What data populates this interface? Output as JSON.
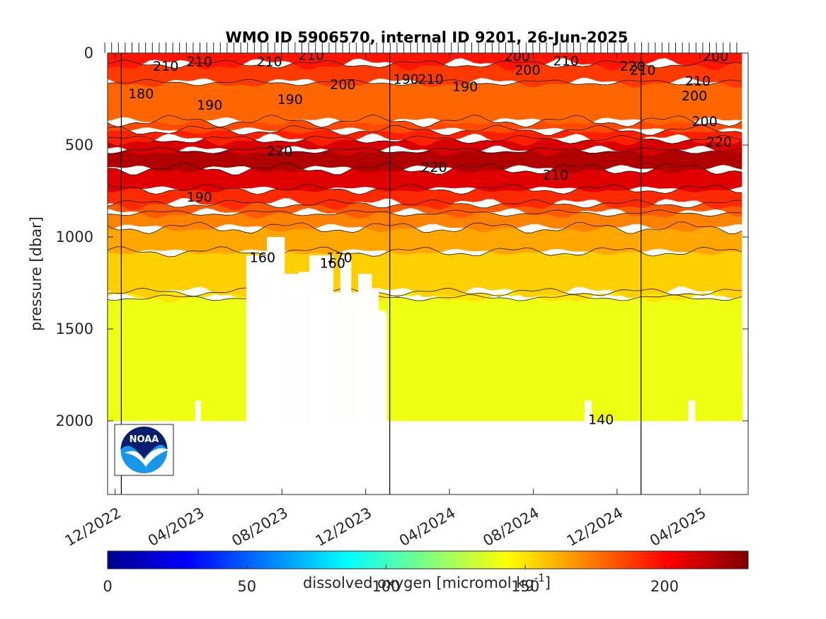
{
  "chart_data": {
    "type": "heatmap",
    "title": "WMO ID 5906570, internal ID 9201, 26-Jun-2025",
    "xlabel": "",
    "ylabel": "pressure [dbar]",
    "xlim": [
      "2022-11-20",
      "2025-06-10"
    ],
    "ylim": [
      0,
      2400
    ],
    "y_reversed": true,
    "x_ticks": [
      "12/2022",
      "04/2023",
      "08/2023",
      "12/2023",
      "04/2024",
      "08/2024",
      "12/2024",
      "04/2025"
    ],
    "x_tick_dates": [
      "2022-12-01",
      "2023-04-01",
      "2023-08-01",
      "2023-12-01",
      "2024-04-01",
      "2024-08-01",
      "2024-12-01",
      "2025-04-01"
    ],
    "y_ticks": [
      0,
      500,
      1000,
      1500,
      2000
    ],
    "profile_start": "2022-11-16",
    "profile_end": "2025-06-02",
    "vertical_markers": [
      "2022-12-10",
      "2024-01-05",
      "2025-01-05"
    ],
    "colorbar": {
      "label": "dissolved oxygen [micromol kg",
      "label_exponent": "-1",
      "label_close": "]",
      "colormap": "jet",
      "range": [
        0,
        230
      ],
      "ticks": [
        0,
        50,
        100,
        150,
        200
      ]
    },
    "contour_labels": [
      {
        "text": "210",
        "date": "2023-01-25",
        "p": 70
      },
      {
        "text": "210",
        "date": "2023-03-15",
        "p": 45
      },
      {
        "text": "210",
        "date": "2023-06-25",
        "p": 45
      },
      {
        "text": "210",
        "date": "2023-08-25",
        "p": 10
      },
      {
        "text": "180",
        "date": "2022-12-20",
        "p": 220
      },
      {
        "text": "190",
        "date": "2023-03-30",
        "p": 280
      },
      {
        "text": "190",
        "date": "2023-07-25",
        "p": 250
      },
      {
        "text": "200",
        "date": "2023-10-10",
        "p": 170
      },
      {
        "text": "220",
        "date": "2023-07-10",
        "p": 530
      },
      {
        "text": "190",
        "date": "2023-03-15",
        "p": 780
      },
      {
        "text": "160",
        "date": "2023-06-15",
        "p": 1110
      },
      {
        "text": "170",
        "date": "2023-10-05",
        "p": 1110
      },
      {
        "text": "160",
        "date": "2023-09-25",
        "p": 1140
      },
      {
        "text": "190",
        "date": "2024-01-10",
        "p": 140
      },
      {
        "text": "210",
        "date": "2024-02-15",
        "p": 140
      },
      {
        "text": "190",
        "date": "2024-04-05",
        "p": 180
      },
      {
        "text": "220",
        "date": "2024-02-20",
        "p": 620
      },
      {
        "text": "200",
        "date": "2024-06-20",
        "p": 15
      },
      {
        "text": "200",
        "date": "2024-07-05",
        "p": 90
      },
      {
        "text": "210",
        "date": "2024-08-30",
        "p": 40
      },
      {
        "text": "210",
        "date": "2024-08-15",
        "p": 660
      },
      {
        "text": "220",
        "date": "2024-12-05",
        "p": 70
      },
      {
        "text": "210",
        "date": "2024-12-20",
        "p": 90
      },
      {
        "text": "210",
        "date": "2025-03-10",
        "p": 150
      },
      {
        "text": "200",
        "date": "2025-03-05",
        "p": 230
      },
      {
        "text": "200",
        "date": "2025-03-20",
        "p": 370
      },
      {
        "text": "200",
        "date": "2025-04-05",
        "p": 15
      },
      {
        "text": "220",
        "date": "2025-04-10",
        "p": 480
      },
      {
        "text": "140",
        "date": "2024-10-20",
        "p": 1990
      }
    ],
    "oxygen_layers": [
      {
        "level": 145,
        "top_dbar": 1330,
        "bottom_dbar": 2000,
        "color": "#eeff12"
      },
      {
        "level": 160,
        "top_dbar": 1300,
        "bottom_dbar": 1330,
        "color": "#ffe500"
      },
      {
        "level": 165,
        "top_dbar": 1080,
        "bottom_dbar": 1300,
        "color": "#ffcf00"
      },
      {
        "level": 175,
        "top_dbar": 950,
        "bottom_dbar": 1080,
        "color": "#ffa600"
      },
      {
        "level": 185,
        "top_dbar": 870,
        "bottom_dbar": 950,
        "color": "#ff8200"
      },
      {
        "level": 195,
        "top_dbar": 820,
        "bottom_dbar": 870,
        "color": "#ff5a00"
      },
      {
        "level": 205,
        "top_dbar": 740,
        "bottom_dbar": 820,
        "color": "#ff2a00"
      },
      {
        "level": 215,
        "top_dbar": 630,
        "bottom_dbar": 740,
        "color": "#e00000"
      },
      {
        "level": 225,
        "top_dbar": 530,
        "bottom_dbar": 630,
        "color": "#b00000"
      },
      {
        "level": 215,
        "top_dbar": 470,
        "bottom_dbar": 530,
        "color": "#d80000"
      },
      {
        "level": 205,
        "top_dbar": 420,
        "bottom_dbar": 470,
        "color": "#ff2000"
      },
      {
        "level": 195,
        "top_dbar": 370,
        "bottom_dbar": 420,
        "color": "#ff4a00"
      },
      {
        "level": 190,
        "top_dbar": 160,
        "bottom_dbar": 370,
        "color": "#ff6600"
      },
      {
        "level": 200,
        "top_dbar": 60,
        "bottom_dbar": 160,
        "color": "#ff3a00"
      },
      {
        "level": 210,
        "top_dbar": 0,
        "bottom_dbar": 60,
        "color": "#ff1500"
      }
    ],
    "missing_data_blocks": [
      {
        "start": "2023-06-10",
        "end": "2023-07-10",
        "top_dbar": 1100
      },
      {
        "start": "2023-07-10",
        "end": "2023-08-05",
        "top_dbar": 1000
      },
      {
        "start": "2023-08-05",
        "end": "2023-08-25",
        "top_dbar": 1200
      },
      {
        "start": "2023-08-25",
        "end": "2023-09-10",
        "top_dbar": 1190
      },
      {
        "start": "2023-09-10",
        "end": "2023-10-15",
        "top_dbar": 1100
      },
      {
        "start": "2023-10-15",
        "end": "2023-10-25",
        "top_dbar": 1300
      },
      {
        "start": "2023-10-25",
        "end": "2023-11-10",
        "top_dbar": 1100
      },
      {
        "start": "2023-11-10",
        "end": "2023-11-20",
        "top_dbar": 1300
      },
      {
        "start": "2023-11-20",
        "end": "2023-12-10",
        "top_dbar": 1200
      },
      {
        "start": "2023-12-10",
        "end": "2023-12-20",
        "top_dbar": 1290
      },
      {
        "start": "2023-12-20",
        "end": "2023-12-30",
        "top_dbar": 1400
      },
      {
        "start": "2023-12-30",
        "end": "2024-01-01",
        "top_dbar": 1420
      },
      {
        "start": "2023-03-28",
        "end": "2023-04-05",
        "top_dbar": 1890
      },
      {
        "start": "2024-10-15",
        "end": "2024-10-25",
        "top_dbar": 1890
      },
      {
        "start": "2025-03-15",
        "end": "2025-03-25",
        "top_dbar": 1890
      }
    ]
  },
  "logo": {
    "text": "NOAA"
  }
}
